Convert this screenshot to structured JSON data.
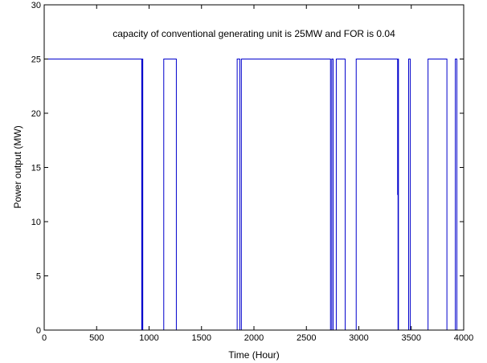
{
  "chart_data": {
    "type": "line",
    "title": "",
    "xlabel": "Time (Hour)",
    "ylabel": "Power output (MW)",
    "xlim": [
      0,
      4000
    ],
    "ylim": [
      0,
      30
    ],
    "xticks": [
      0,
      500,
      1000,
      1500,
      2000,
      2500,
      3000,
      3500,
      4000
    ],
    "yticks": [
      0,
      5,
      10,
      15,
      20,
      25,
      30
    ],
    "xtick_labels": [
      "0",
      "500",
      "1000",
      "1500",
      "2000",
      "2500",
      "3000",
      "3500",
      "4000"
    ],
    "ytick_labels": [
      "0",
      "5",
      "10",
      "15",
      "20",
      "25",
      "30"
    ],
    "grid": false,
    "legend": "none",
    "line_color": "#0000cc",
    "annotation": "capacity of conventional generating unit is 25MW and FOR is 0.04",
    "series": [
      {
        "x": [
          0,
          930,
          930,
          935,
          935,
          940,
          940,
          1140,
          1140,
          1260,
          1260,
          1840,
          1840,
          1865,
          1865,
          1880,
          1880,
          2730,
          2730,
          2742,
          2742,
          2755,
          2755,
          2785,
          2785,
          2870,
          2870,
          2975,
          2975,
          3370,
          3370,
          3372,
          3372,
          3374,
          3374,
          3376,
          3376,
          3378,
          3378,
          3475,
          3475,
          3490,
          3490,
          3660,
          3660,
          3840,
          3840,
          3920,
          3920,
          3935,
          3935,
          4000
        ],
        "y": [
          25,
          25,
          0,
          0,
          25,
          25,
          0,
          0,
          25,
          25,
          0,
          0,
          25,
          25,
          0,
          0,
          25,
          25,
          0,
          0,
          25,
          25,
          0,
          0,
          25,
          25,
          0,
          0,
          25,
          25,
          12.5,
          12.5,
          25,
          25,
          0,
          0,
          25,
          25,
          0,
          0,
          25,
          25,
          0,
          0,
          25,
          25,
          0,
          0,
          25,
          25,
          0,
          0
        ]
      }
    ]
  }
}
